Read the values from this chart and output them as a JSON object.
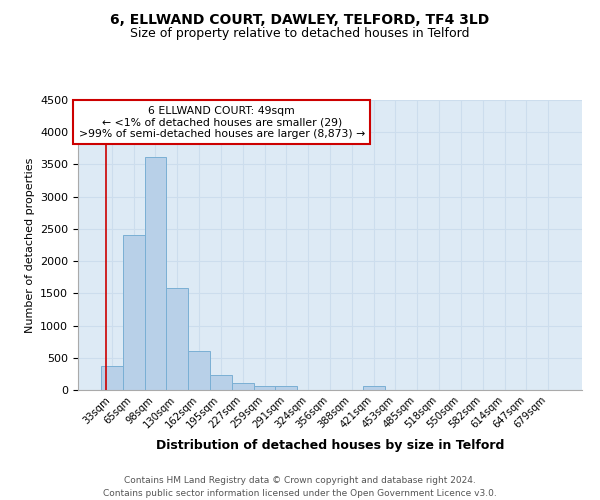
{
  "title": "6, ELLWAND COURT, DAWLEY, TELFORD, TF4 3LD",
  "subtitle": "Size of property relative to detached houses in Telford",
  "xlabel": "Distribution of detached houses by size in Telford",
  "ylabel": "Number of detached properties",
  "categories": [
    "33sqm",
    "65sqm",
    "98sqm",
    "130sqm",
    "162sqm",
    "195sqm",
    "227sqm",
    "259sqm",
    "291sqm",
    "324sqm",
    "356sqm",
    "388sqm",
    "421sqm",
    "453sqm",
    "485sqm",
    "518sqm",
    "550sqm",
    "582sqm",
    "614sqm",
    "647sqm",
    "679sqm"
  ],
  "values": [
    370,
    2400,
    3620,
    1590,
    600,
    240,
    105,
    65,
    55,
    0,
    0,
    0,
    65,
    0,
    0,
    0,
    0,
    0,
    0,
    0,
    0
  ],
  "bar_color": "#b8d0e8",
  "bar_edge_color": "#7aafd4",
  "ylim": [
    0,
    4500
  ],
  "yticks": [
    0,
    500,
    1000,
    1500,
    2000,
    2500,
    3000,
    3500,
    4000,
    4500
  ],
  "annotation_text": "6 ELLWAND COURT: 49sqm\n← <1% of detached houses are smaller (29)\n>99% of semi-detached houses are larger (8,873) →",
  "annotation_box_color": "#ffffff",
  "annotation_box_edge": "#cc0000",
  "property_line_color": "#cc0000",
  "grid_color": "#ccdded",
  "bg_color": "#ddeaf5",
  "footer_line1": "Contains HM Land Registry data © Crown copyright and database right 2024.",
  "footer_line2": "Contains public sector information licensed under the Open Government Licence v3.0."
}
